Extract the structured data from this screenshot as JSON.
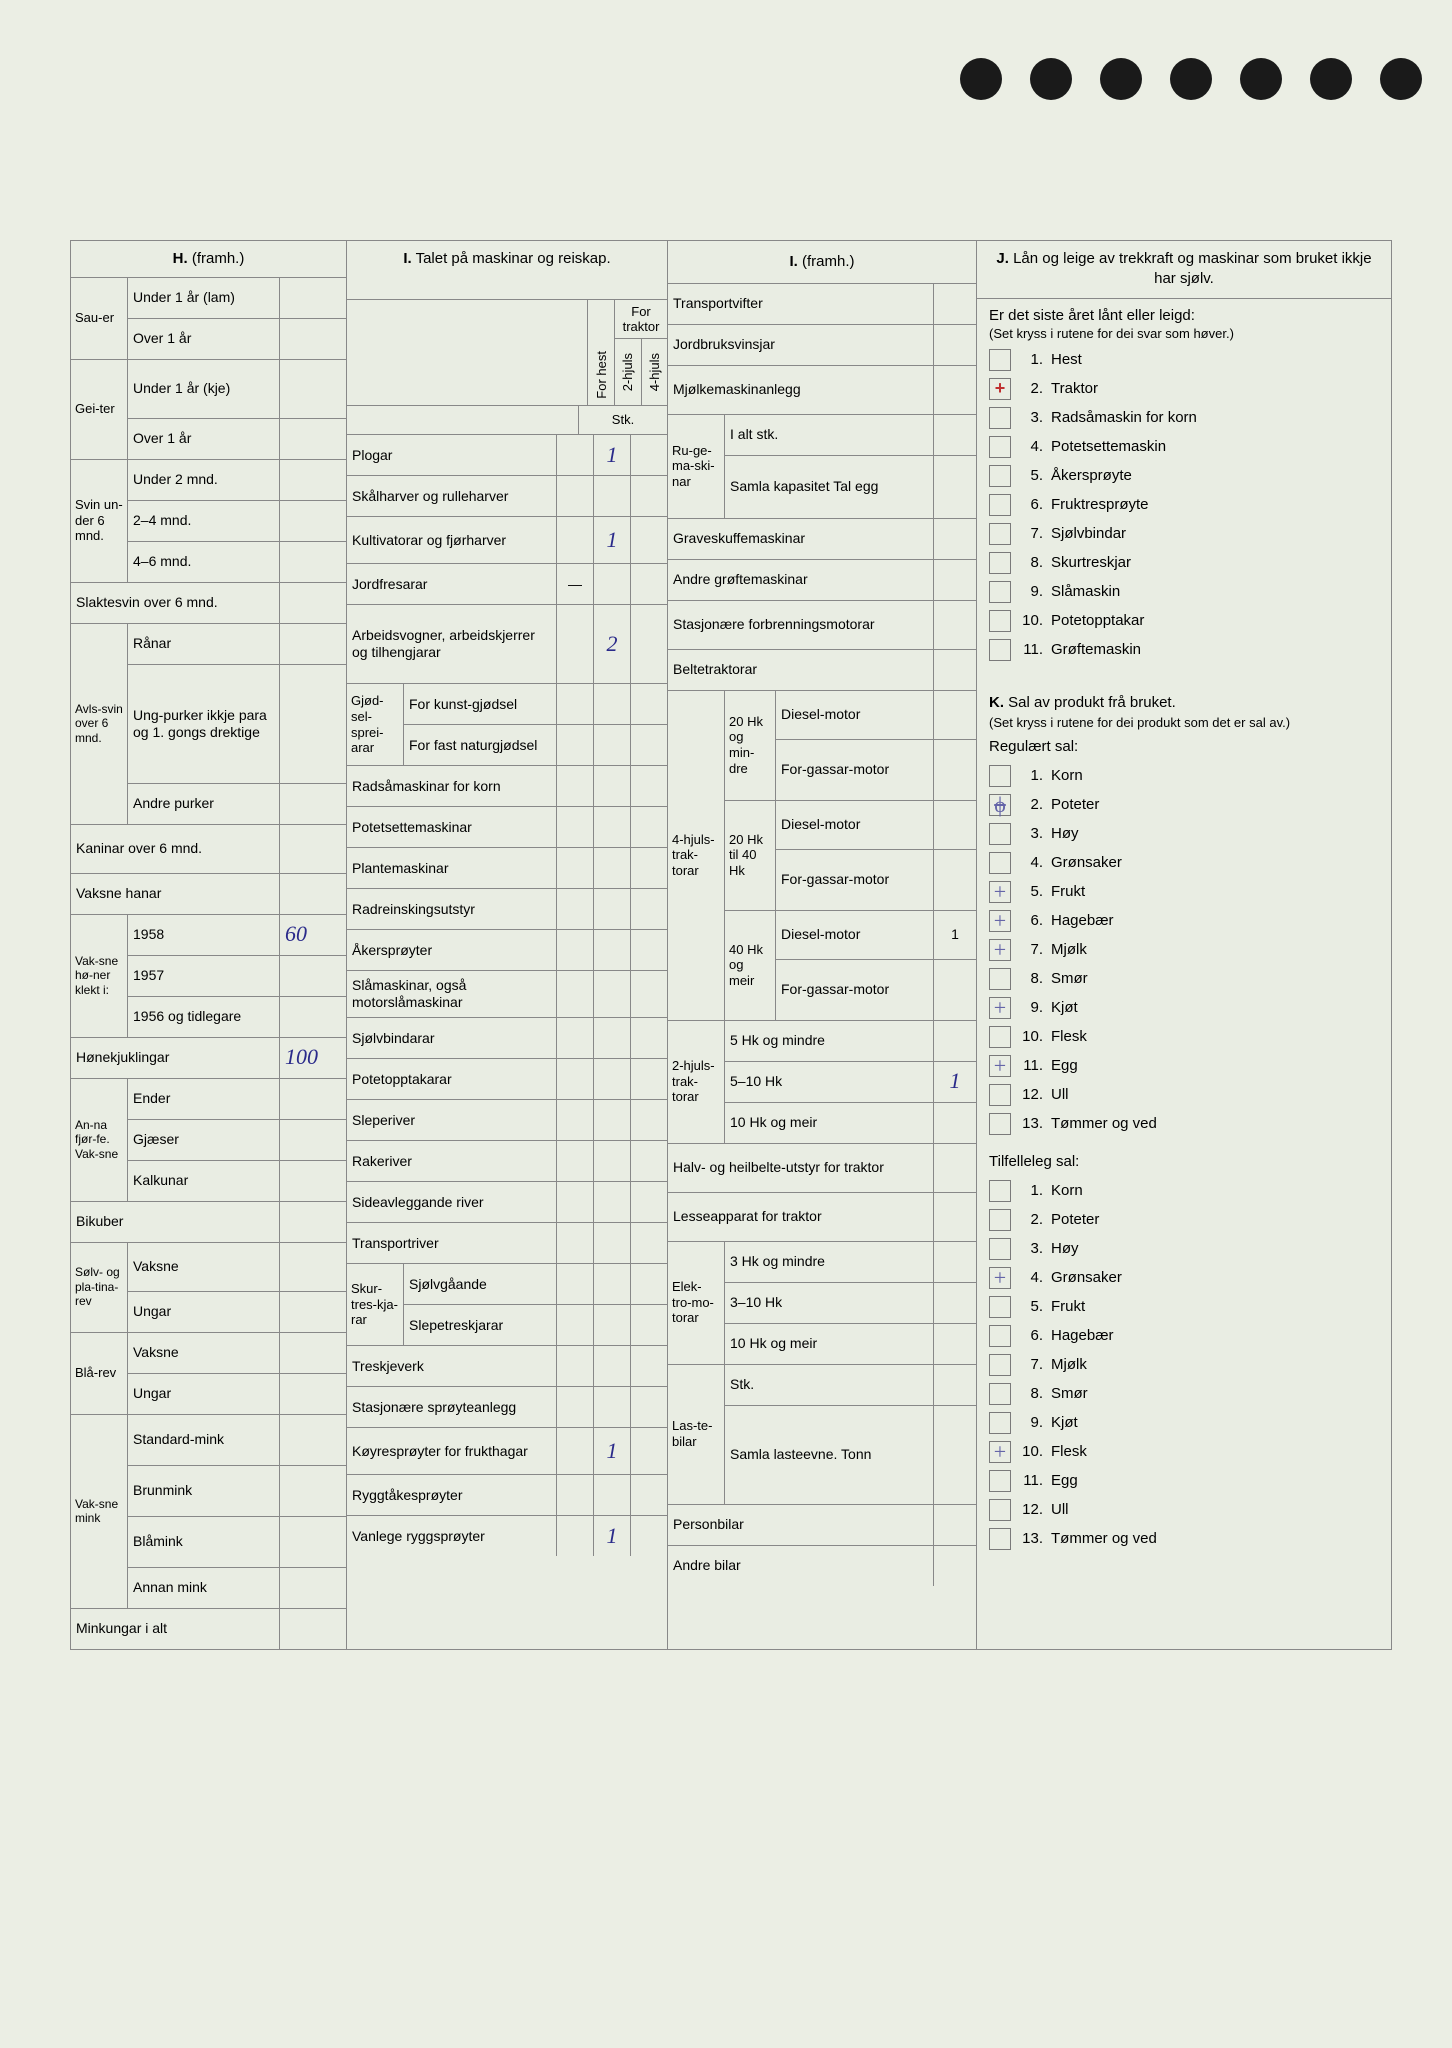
{
  "holes_count": 7,
  "sections": {
    "H": {
      "title_prefix": "H.",
      "title_suffix": "(framh.)"
    },
    "I": {
      "title_prefix": "I.",
      "title_text": "Talet på maskinar og reiskap."
    },
    "I2": {
      "title_prefix": "I.",
      "title_suffix": "(framh.)"
    },
    "J": {
      "title_prefix": "J.",
      "title_text": "Lån og leige av trekkraft og maskinar som bruket ikkje har sjølv."
    },
    "K": {
      "title_prefix": "K.",
      "title_text": "Sal av produkt frå bruket."
    }
  },
  "colH": {
    "sauer": {
      "label": "Sau-er",
      "r1": "Under 1 år (lam)",
      "r2": "Over 1 år"
    },
    "geiter": {
      "label": "Gei-ter",
      "r1": "Under 1 år (kje)",
      "r2": "Over 1 år"
    },
    "svin": {
      "label": "Svin un-der 6 mnd.",
      "r1": "Under 2 mnd.",
      "r2": "2–4 mnd.",
      "r3": "4–6 mnd."
    },
    "slaktesvin": "Slaktesvin over 6 mnd.",
    "avlssvin": {
      "label": "Avls-svin over 6 mnd.",
      "r1": "Rånar",
      "r2": "Ung-purker ikkje para og 1. gongs drektige",
      "r3": "Andre purker"
    },
    "kaninar": "Kaninar over 6 mnd.",
    "vaksne_hanar": "Vaksne hanar",
    "honer": {
      "label": "Vak-sne hø-ner klekt i:",
      "r1": "1958",
      "r1v": "60",
      "r2": "1957",
      "r3": "1956 og tidlegare"
    },
    "honekjuklingar": {
      "label": "Hønekjuklingar",
      "val": "100"
    },
    "anna": {
      "label": "An-na fjør-fe. Vak-sne",
      "r1": "Ender",
      "r2": "Gjæser",
      "r3": "Kalkunar"
    },
    "bikuber": "Bikuber",
    "solvrev": {
      "label": "Sølv- og pla-tina-rev",
      "r1": "Vaksne",
      "r2": "Ungar"
    },
    "blarev": {
      "label": "Blå-rev",
      "r1": "Vaksne",
      "r2": "Ungar"
    },
    "mink": {
      "label": "Vak-sne mink",
      "r1": "Standard-mink",
      "r2": "Brunmink",
      "r3": "Blåmink",
      "r4": "Annan mink"
    },
    "minkungar": "Minkungar i alt"
  },
  "colI": {
    "header": {
      "forhest": "For hest",
      "fortraktor": "For traktor",
      "h2": "2-hjuls",
      "h4": "4-hjuls",
      "stk": "Stk."
    },
    "rows": [
      {
        "label": "Plogar",
        "v2": "1"
      },
      {
        "label": "Skålharver og rulleharver"
      },
      {
        "label": "Kultivatorar og fjørharver",
        "v2": "1"
      },
      {
        "label": "Jordfresarar",
        "v1": "—"
      },
      {
        "label": "Arbeidsvogner, arbeidskjerrer og tilhengjarar",
        "v2": "2",
        "tall": true
      },
      {
        "group": "Gjød-sel-sprei-arar",
        "r1": "For kunst-gjødsel",
        "r2": "For fast naturgjødsel"
      },
      {
        "label": "Radsåmaskinar for korn"
      },
      {
        "label": "Potetsettemaskinar"
      },
      {
        "label": "Plantemaskinar"
      },
      {
        "label": "Radreinskingsutstyr"
      },
      {
        "label": "Åkersprøyter"
      },
      {
        "label": "Slåmaskinar, også motorslåmaskinar"
      },
      {
        "label": "Sjølvbindarar"
      },
      {
        "label": "Potetopptakarar"
      },
      {
        "label": "Sleperiver"
      },
      {
        "label": "Rakeriver"
      },
      {
        "label": "Sideavleggande river"
      },
      {
        "label": "Transportriver"
      },
      {
        "group": "Skur-tres-kja-rar",
        "r1": "Sjølvgåande",
        "r2": "Slepetreskjarar"
      },
      {
        "label": "Treskjeverk"
      },
      {
        "label": "Stasjonære sprøyteanlegg"
      },
      {
        "label": "Køyresprøyter for frukthagar",
        "v2": "1"
      },
      {
        "label": "Ryggtåkesprøyter"
      },
      {
        "label": "Vanlege ryggsprøyter",
        "v2": "1"
      }
    ]
  },
  "colI2": {
    "top": [
      "Transportvifter",
      "Jordbruksvinsjar",
      "Mjølkemaskinanlegg"
    ],
    "ruge": {
      "label": "Ru-ge-ma-ski-nar",
      "r1": "I alt stk.",
      "r2": "Samla kapasitet Tal egg"
    },
    "mid": [
      "Graveskuffemaskinar",
      "Andre grøftemaskinar",
      "Stasjonære forbrenningsmotorar",
      "Beltetraktorar"
    ],
    "hjuls4": {
      "label": "4-hjuls-trak-torar",
      "g1": {
        "lab": "20 Hk og min-dre",
        "r1": "Diesel-motor",
        "r2": "For-gassar-motor"
      },
      "g2": {
        "lab": "20 Hk til 40 Hk",
        "r1": "Diesel-motor",
        "r2": "For-gassar-motor"
      },
      "g3": {
        "lab": "40 Hk og meir",
        "r1": "Diesel-motor",
        "r1v": "1",
        "r2": "For-gassar-motor"
      }
    },
    "hjuls2": {
      "label": "2-hjuls-trak-torar",
      "r1": "5 Hk og mindre",
      "r2": "5–10 Hk",
      "r2v": "1",
      "r3": "10 Hk og meir"
    },
    "halv": "Halv- og heilbelte-utstyr for traktor",
    "lesse": "Lesseapparat for traktor",
    "elektro": {
      "label": "Elek-tro-mo-torar",
      "r1": "3 Hk og mindre",
      "r2": "3–10 Hk",
      "r3": "10 Hk og meir"
    },
    "laste": {
      "label": "Las-te-bilar",
      "r1": "Stk.",
      "r2": "Samla lasteevne. Tonn"
    },
    "person": "Personbilar",
    "andre": "Andre bilar"
  },
  "J": {
    "sub": "Er det siste året lånt eller leigd:",
    "note": "(Set kryss i rutene for dei svar som høver.)",
    "items": [
      {
        "n": "1.",
        "t": "Hest"
      },
      {
        "n": "2.",
        "t": "Traktor",
        "mark": "red"
      },
      {
        "n": "3.",
        "t": "Radsåmaskin for korn"
      },
      {
        "n": "4.",
        "t": "Potetsettemaskin"
      },
      {
        "n": "5.",
        "t": "Åkersprøyte"
      },
      {
        "n": "6.",
        "t": "Fruktresprøyte"
      },
      {
        "n": "7.",
        "t": "Sjølvbindar"
      },
      {
        "n": "8.",
        "t": "Skurtreskjar"
      },
      {
        "n": "9.",
        "t": "Slåmaskin"
      },
      {
        "n": "10.",
        "t": "Potetopptakar"
      },
      {
        "n": "11.",
        "t": "Grøftemaskin"
      }
    ]
  },
  "K": {
    "note": "(Set kryss i rutene for dei produkt som det er sal av.)",
    "reg_label": "Regulært sal:",
    "reg": [
      {
        "n": "1.",
        "t": "Korn"
      },
      {
        "n": "2.",
        "t": "Poteter",
        "mark": "blue-strike"
      },
      {
        "n": "3.",
        "t": "Høy"
      },
      {
        "n": "4.",
        "t": "Grønsaker"
      },
      {
        "n": "5.",
        "t": "Frukt",
        "mark": "blue"
      },
      {
        "n": "6.",
        "t": "Hagebær",
        "mark": "blue"
      },
      {
        "n": "7.",
        "t": "Mjølk",
        "mark": "blue"
      },
      {
        "n": "8.",
        "t": "Smør"
      },
      {
        "n": "9.",
        "t": "Kjøt",
        "mark": "blue"
      },
      {
        "n": "10.",
        "t": "Flesk"
      },
      {
        "n": "11.",
        "t": "Egg",
        "mark": "blue"
      },
      {
        "n": "12.",
        "t": "Ull"
      },
      {
        "n": "13.",
        "t": "Tømmer og ved"
      }
    ],
    "tilf_label": "Tilfelleleg sal:",
    "tilf": [
      {
        "n": "1.",
        "t": "Korn"
      },
      {
        "n": "2.",
        "t": "Poteter"
      },
      {
        "n": "3.",
        "t": "Høy"
      },
      {
        "n": "4.",
        "t": "Grønsaker",
        "mark": "blue"
      },
      {
        "n": "5.",
        "t": "Frukt"
      },
      {
        "n": "6.",
        "t": "Hagebær"
      },
      {
        "n": "7.",
        "t": "Mjølk"
      },
      {
        "n": "8.",
        "t": "Smør"
      },
      {
        "n": "9.",
        "t": "Kjøt"
      },
      {
        "n": "10.",
        "t": "Flesk",
        "mark": "blue"
      },
      {
        "n": "11.",
        "t": "Egg"
      },
      {
        "n": "12.",
        "t": "Ull"
      },
      {
        "n": "13.",
        "t": "Tømmer og ved"
      }
    ]
  }
}
